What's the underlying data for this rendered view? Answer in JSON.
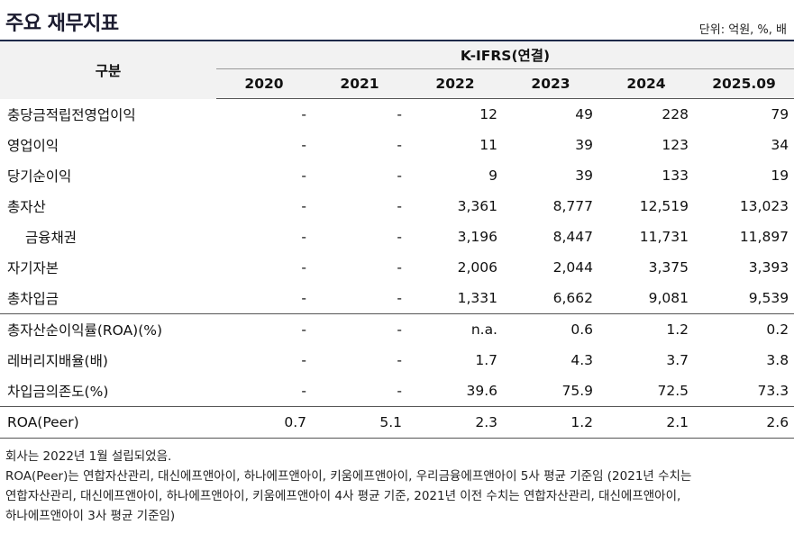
{
  "title": "주요 재무지표",
  "unit": "단위: 억원, %, 배",
  "table": {
    "row_header": "구분",
    "group_header": "K-IFRS(연결)",
    "years": [
      "2020",
      "2021",
      "2022",
      "2023",
      "2024",
      "2025.09"
    ],
    "rows": [
      {
        "label": "충당금적립전영업이익",
        "values": [
          "-",
          "-",
          "12",
          "49",
          "228",
          "79"
        ]
      },
      {
        "label": "영업이익",
        "values": [
          "-",
          "-",
          "11",
          "39",
          "123",
          "34"
        ]
      },
      {
        "label": "당기순이익",
        "values": [
          "-",
          "-",
          "9",
          "39",
          "133",
          "19"
        ]
      },
      {
        "label": "총자산",
        "values": [
          "-",
          "-",
          "3,361",
          "8,777",
          "12,519",
          "13,023"
        ]
      },
      {
        "label": "금융채권",
        "values": [
          "-",
          "-",
          "3,196",
          "8,447",
          "11,731",
          "11,897"
        ]
      },
      {
        "label": "자기자본",
        "values": [
          "-",
          "-",
          "2,006",
          "2,044",
          "3,375",
          "3,393"
        ]
      },
      {
        "label": "총차입금",
        "values": [
          "-",
          "-",
          "1,331",
          "6,662",
          "9,081",
          "9,539"
        ]
      },
      {
        "label": "총자산순이익률(ROA)(%)",
        "values": [
          "-",
          "-",
          "n.a.",
          "0.6",
          "1.2",
          "0.2"
        ]
      },
      {
        "label": "레버리지배율(배)",
        "values": [
          "-",
          "-",
          "1.7",
          "4.3",
          "3.7",
          "3.8"
        ]
      },
      {
        "label": "차입금의존도(%)",
        "values": [
          "-",
          "-",
          "39.6",
          "75.9",
          "72.5",
          "73.3"
        ]
      },
      {
        "label": "ROA(Peer)",
        "values": [
          "0.7",
          "5.1",
          "2.3",
          "1.2",
          "2.1",
          "2.6"
        ]
      }
    ]
  },
  "notes": {
    "line1": "회사는 2022년 1월 설립되었음.",
    "line2": "ROA(Peer)는 연합자산관리, 대신에프앤아이, 하나에프앤아이, 키움에프앤아이, 우리금융에프앤아이 5사 평균 기준임 (2021년 수치는",
    "line3": "연합자산관리, 대신에프앤아이, 하나에프앤아이, 키움에프앤아이 4사 평균 기준, 2021년 이전 수치는 연합자산관리, 대신에프앤아이,",
    "line4": "하나에프앤아이 3사 평균 기준임)"
  }
}
